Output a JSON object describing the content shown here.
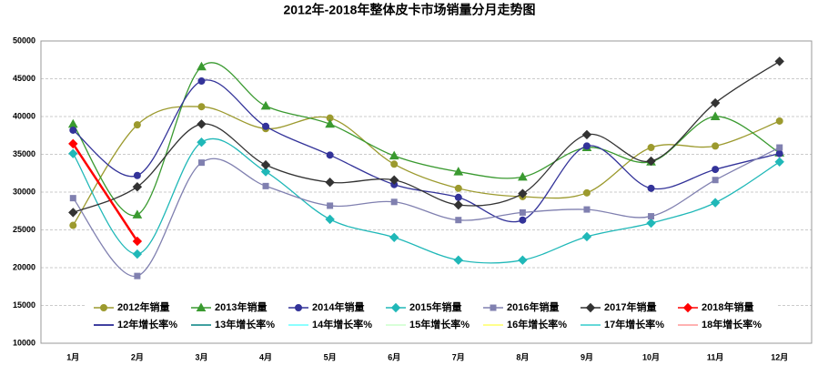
{
  "chart_data": {
    "type": "line",
    "title": "2012年-2018年整体皮卡市场销量分月走势图",
    "categories": [
      "1月",
      "2月",
      "3月",
      "4月",
      "5月",
      "6月",
      "7月",
      "8月",
      "9月",
      "10月",
      "11月",
      "12月"
    ],
    "ylim": [
      10000,
      50000
    ],
    "yticks": [
      10000,
      15000,
      20000,
      25000,
      30000,
      35000,
      40000,
      45000,
      50000
    ],
    "grid": true,
    "smooth": true,
    "legend": "bottom",
    "series": [
      {
        "name": "2012年销量",
        "color": "#9c9a2e",
        "marker": "circle",
        "values": [
          25600,
          38900,
          41300,
          38400,
          39800,
          33700,
          30500,
          29400,
          29900,
          35900,
          36100,
          39400
        ]
      },
      {
        "name": "2013年销量",
        "color": "#3a9a30",
        "marker": "triangle",
        "values": [
          39000,
          27000,
          46600,
          41400,
          39000,
          34800,
          32700,
          32000,
          35900,
          34000,
          40000,
          35200
        ]
      },
      {
        "name": "2014年销量",
        "color": "#333399",
        "marker": "circle",
        "values": [
          38200,
          32200,
          44700,
          38700,
          34900,
          31000,
          29300,
          26300,
          36100,
          30500,
          33000,
          35100
        ]
      },
      {
        "name": "2015年销量",
        "color": "#20b8b8",
        "marker": "diamond",
        "values": [
          35100,
          21800,
          36600,
          32700,
          26400,
          24000,
          21000,
          21000,
          24100,
          25900,
          28600,
          34000
        ]
      },
      {
        "name": "2016年销量",
        "color": "#8080b0",
        "marker": "square",
        "values": [
          29200,
          18900,
          33900,
          30800,
          28200,
          28700,
          26300,
          27300,
          27700,
          26800,
          31600,
          35900
        ]
      },
      {
        "name": "2017年销量",
        "color": "#333333",
        "marker": "diamond",
        "values": [
          27300,
          30700,
          39000,
          33600,
          31300,
          31600,
          28300,
          29800,
          37600,
          34100,
          41800,
          47300
        ]
      },
      {
        "name": "2018年销量",
        "color": "#ff0000",
        "marker": "diamond",
        "values": [
          36400,
          23500,
          null,
          null,
          null,
          null,
          null,
          null,
          null,
          null,
          null,
          null
        ]
      },
      {
        "name": "12年增长率%",
        "color": "#000080",
        "marker": "none",
        "values": [
          null,
          null,
          null,
          null,
          null,
          null,
          null,
          null,
          null,
          null,
          null,
          null
        ]
      },
      {
        "name": "13年增长率%",
        "color": "#008080",
        "marker": "none",
        "values": [
          null,
          null,
          null,
          null,
          null,
          null,
          null,
          null,
          null,
          null,
          null,
          null
        ]
      },
      {
        "name": "14年增长率%",
        "color": "#66ffff",
        "marker": "none",
        "values": [
          null,
          null,
          null,
          null,
          null,
          null,
          null,
          null,
          null,
          null,
          null,
          null
        ]
      },
      {
        "name": "15年增长率%",
        "color": "#ccffcc",
        "marker": "none",
        "values": [
          null,
          null,
          null,
          null,
          null,
          null,
          null,
          null,
          null,
          null,
          null,
          null
        ]
      },
      {
        "name": "16年增长率%",
        "color": "#ffff66",
        "marker": "none",
        "values": [
          null,
          null,
          null,
          null,
          null,
          null,
          null,
          null,
          null,
          null,
          null,
          null
        ]
      },
      {
        "name": "17年增长率%",
        "color": "#33cccc",
        "marker": "none",
        "values": [
          null,
          null,
          null,
          null,
          null,
          null,
          null,
          null,
          null,
          null,
          null,
          null
        ]
      },
      {
        "name": "18年增长率%",
        "color": "#ff9999",
        "marker": "none",
        "values": [
          null,
          null,
          null,
          null,
          null,
          null,
          null,
          null,
          null,
          null,
          null,
          null
        ]
      }
    ]
  }
}
